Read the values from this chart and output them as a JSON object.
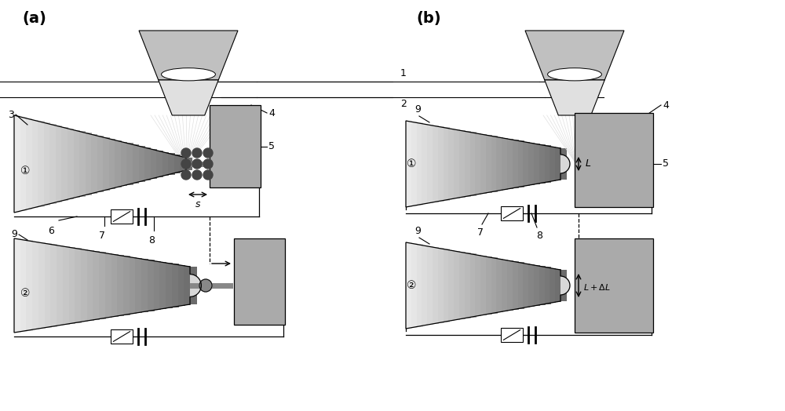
{
  "bg_color": "#ffffff",
  "lc": "#000000",
  "gray_probe": "#d8d8d8",
  "gray_block": "#aaaaaa",
  "gray_mic_outer": "#c0c0c0",
  "gray_mic_inner": "#e0e0e0",
  "gray_beam": "#e8e8e8",
  "title_a": "(a)",
  "title_b": "(b)",
  "figw": 10.0,
  "figh": 5.24
}
